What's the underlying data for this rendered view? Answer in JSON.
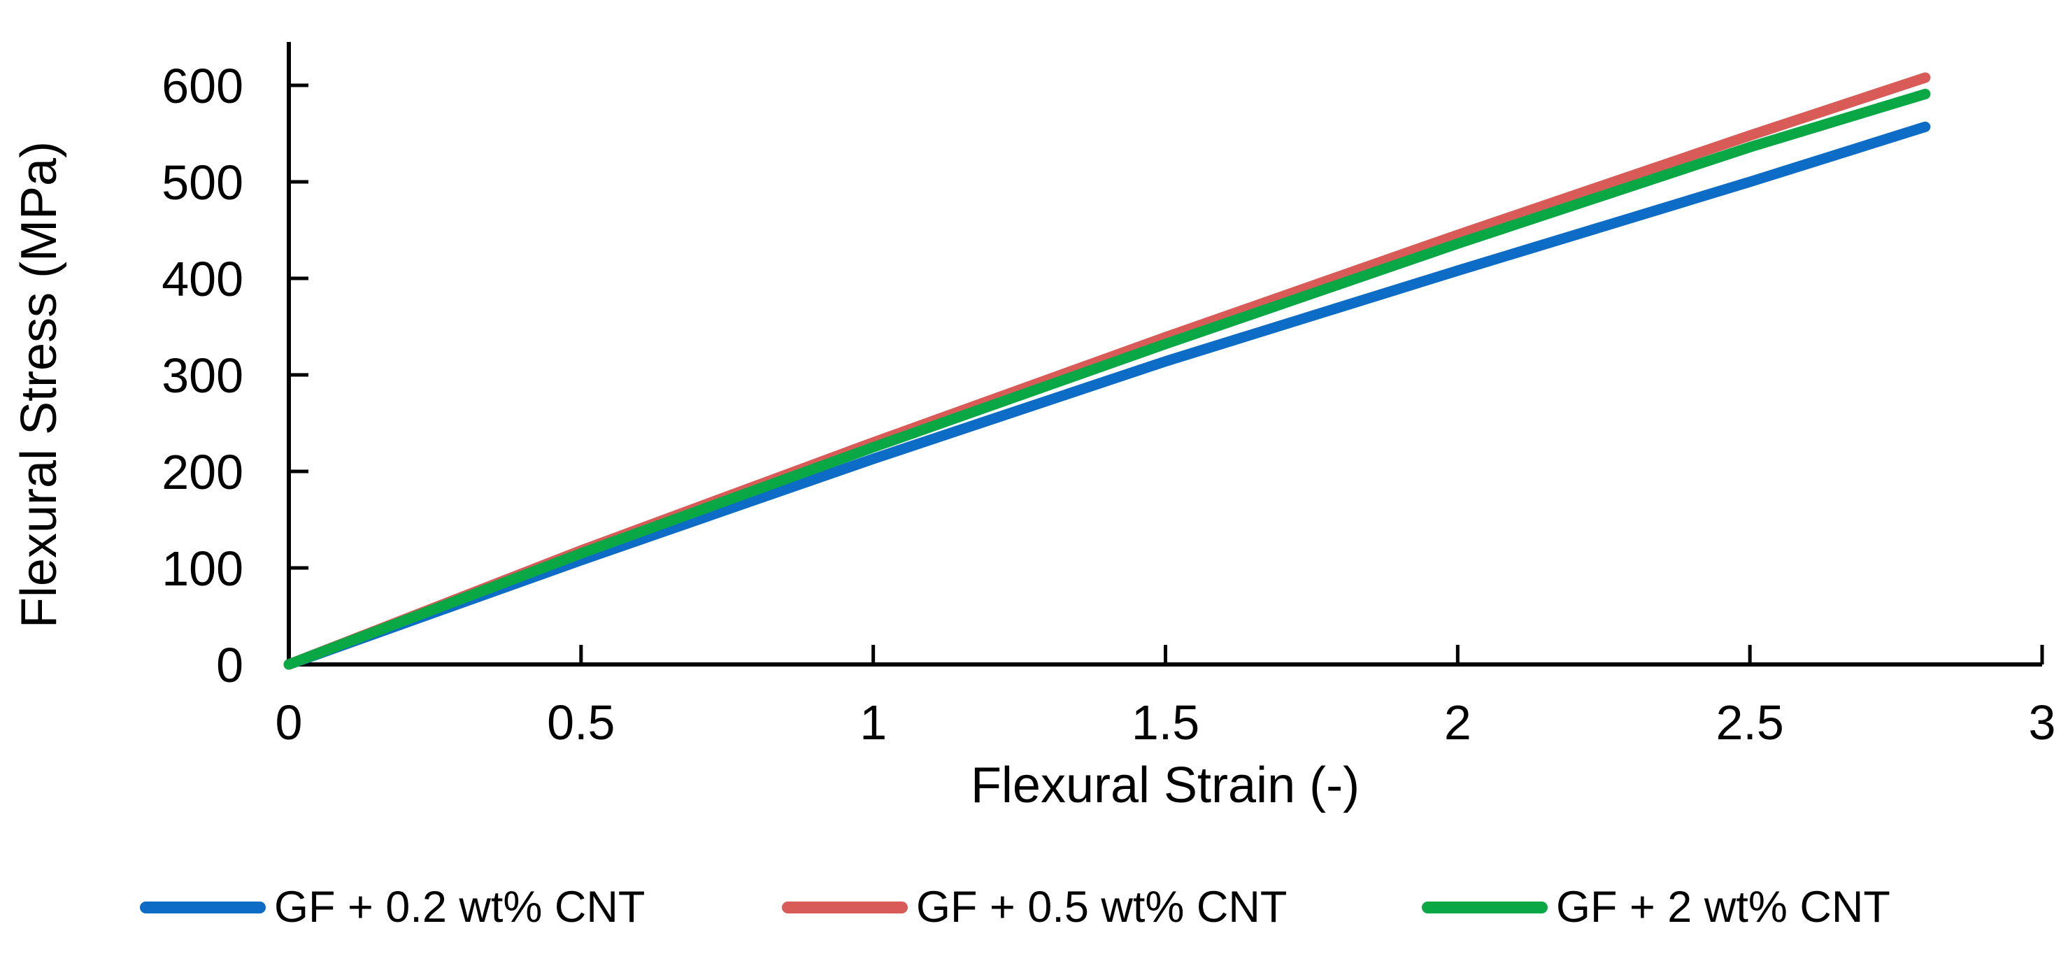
{
  "figure": {
    "background": "#ffffff",
    "text_color": "#000000",
    "axis_color": "#000000"
  },
  "axes": {
    "y": {
      "title": "Flexural Stress (MPa)",
      "ticks": [
        "0",
        "100",
        "200",
        "300",
        "400",
        "500",
        "600"
      ],
      "min": 0,
      "max": 650
    },
    "x": {
      "title": "Flexural Strain (-)",
      "ticks": [
        "0",
        "0.5",
        "1",
        "1.5",
        "2",
        "2.5",
        "3"
      ],
      "min": 0,
      "max": 3
    }
  },
  "legend": {
    "items": [
      {
        "label": "GF + 0.2 wt% CNT",
        "color": "#0D6CC5"
      },
      {
        "label": "GF + 0.5 wt% CNT",
        "color": "#D95B58"
      },
      {
        "label": "GF + 2 wt% CNT",
        "color": "#0AA845"
      }
    ]
  },
  "chart_data": {
    "type": "line",
    "title": "",
    "xlabel": "Flexural Strain (-)",
    "ylabel": "Flexural Stress (MPa)",
    "xlim": [
      0,
      3
    ],
    "ylim": [
      0,
      650
    ],
    "grid": false,
    "legend_position": "bottom",
    "x": [
      0,
      0.5,
      1.0,
      1.5,
      2.0,
      2.5,
      2.8
    ],
    "series": [
      {
        "name": "GF + 0.2 wt% CNT",
        "color": "#0D6CC5",
        "values": [
          0,
          108,
          213,
          314,
          408,
          500,
          557
        ]
      },
      {
        "name": "GF + 0.5 wt% CNT",
        "color": "#D95B58",
        "values": [
          0,
          118,
          230,
          339,
          445,
          548,
          608
        ]
      },
      {
        "name": "GF + 2 wt% CNT",
        "color": "#0AA845",
        "values": [
          0,
          115,
          225,
          332,
          436,
          536,
          591
        ]
      }
    ],
    "draw_order": [
      0,
      1,
      2
    ]
  }
}
